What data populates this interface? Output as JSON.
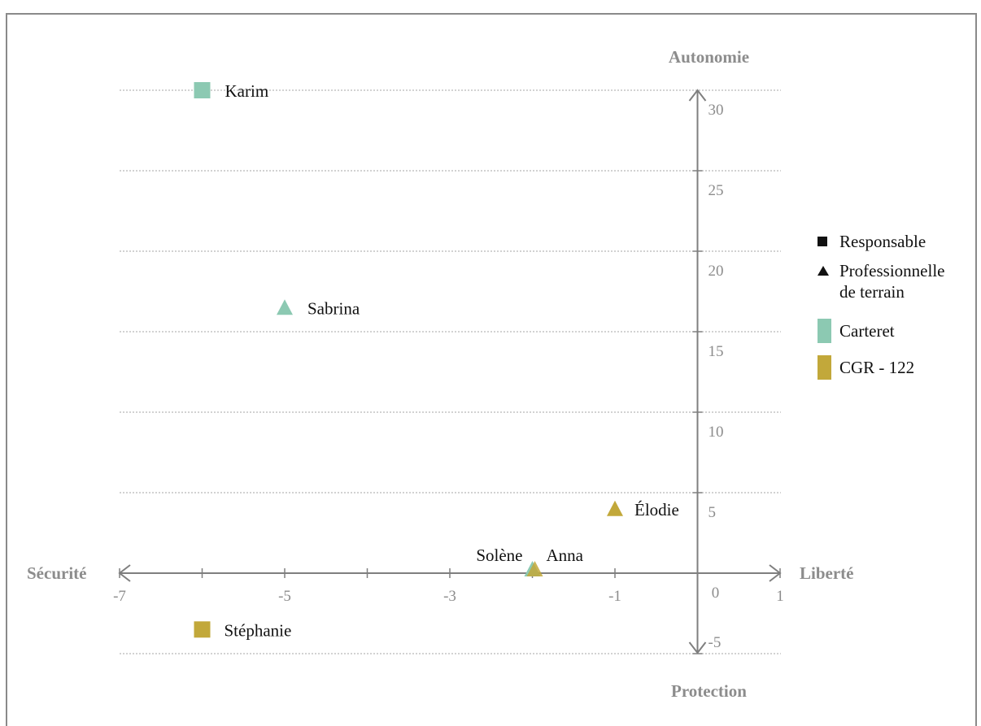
{
  "chart_data": {
    "type": "scatter",
    "axes": {
      "x_left_label": "Sécurité",
      "x_right_label": "Liberté",
      "y_top_label": "Autonomie",
      "y_bottom_label": "Protection",
      "xlim": [
        -7,
        1
      ],
      "ylim": [
        -5,
        30
      ],
      "x_ticks": [
        "-7",
        "-5",
        "-3",
        "-1",
        "0",
        "1"
      ],
      "y_ticks": [
        "-5",
        "5",
        "10",
        "15",
        "20",
        "25",
        "30"
      ],
      "grid": "horizontal dotted"
    },
    "points": [
      {
        "name": "Karim",
        "x": -6,
        "y": 30,
        "shape": "square",
        "group": "Carteret"
      },
      {
        "name": "Sabrina",
        "x": -5,
        "y": 16.5,
        "shape": "triangle",
        "group": "Carteret"
      },
      {
        "name": "Élodie",
        "x": -1,
        "y": 4,
        "shape": "triangle",
        "group": "CGR - 122"
      },
      {
        "name": "Solène",
        "x": -2,
        "y": 0,
        "shape": "triangle",
        "group": "Carteret"
      },
      {
        "name": "Anna",
        "x": -2,
        "y": 0,
        "shape": "triangle",
        "group": "CGR - 122"
      },
      {
        "name": "Stéphanie",
        "x": -6,
        "y": -3.5,
        "shape": "square",
        "group": "CGR - 122"
      }
    ],
    "legend": {
      "placement": "right",
      "shapes": [
        {
          "shape": "square",
          "label": "Responsable"
        },
        {
          "shape": "triangle",
          "label_line1": "Professionnelle",
          "label_line2": "de terrain"
        }
      ],
      "groups": [
        {
          "label": "Carteret",
          "color": "#8cc9b2"
        },
        {
          "label": "CGR - 122",
          "color": "#c2a83a"
        }
      ]
    }
  },
  "colors": {
    "axis": "#7f7f7f",
    "tick_text": "#8c8c8c",
    "grid": "#a6a6a6",
    "point_text": "#111111",
    "Carteret": "#8cc9b2",
    "CGR - 122": "#c2a83a"
  }
}
